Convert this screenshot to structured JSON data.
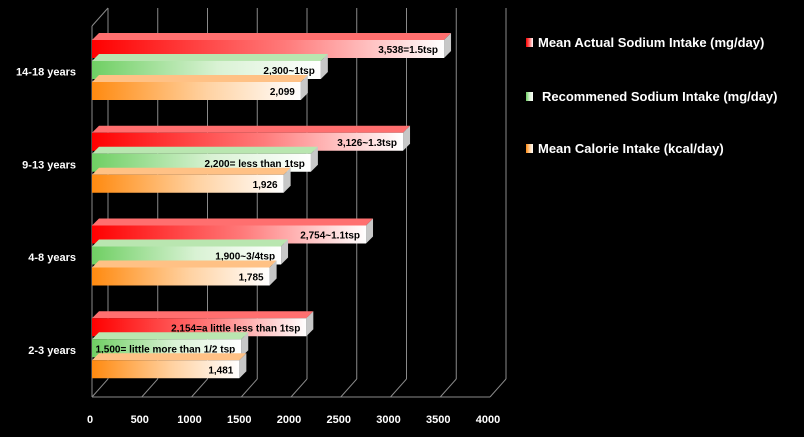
{
  "chart_data": {
    "type": "bar",
    "orientation": "horizontal",
    "categories": [
      "14-18 years",
      "9-13 years",
      "4-8 years",
      "2-3 years"
    ],
    "series": [
      {
        "name": "Mean Actual Sodium Intake (mg/day)",
        "color": "#ff1010",
        "values": [
          3538,
          3126,
          2754,
          2154
        ],
        "labels": [
          "3,538=1.5tsp",
          "3,126~1.3tsp",
          "2,754~1.1tsp",
          "2,154=a little less than 1tsp"
        ]
      },
      {
        "name": "Recommened Sodium Intake (mg/day)",
        "color": "#7ccf6e",
        "values": [
          2300,
          2200,
          1900,
          1500
        ],
        "labels": [
          "2,300~1tsp",
          "2,200= less than 1tsp",
          "1,900~3/4tsp",
          "1,500= little more than 1/2 tsp"
        ]
      },
      {
        "name": "Mean Calorie Intake (kcal/day)",
        "color": "#ff8c1a",
        "values": [
          2099,
          1926,
          1785,
          1481
        ],
        "labels": [
          "2,099",
          "1,926",
          "1,785",
          "1,481"
        ]
      }
    ],
    "x_ticks": [
      0,
      500,
      1000,
      1500,
      2000,
      2500,
      3000,
      3500,
      4000
    ],
    "xlim": [
      0,
      4000
    ],
    "grid": true,
    "legend": "right"
  }
}
